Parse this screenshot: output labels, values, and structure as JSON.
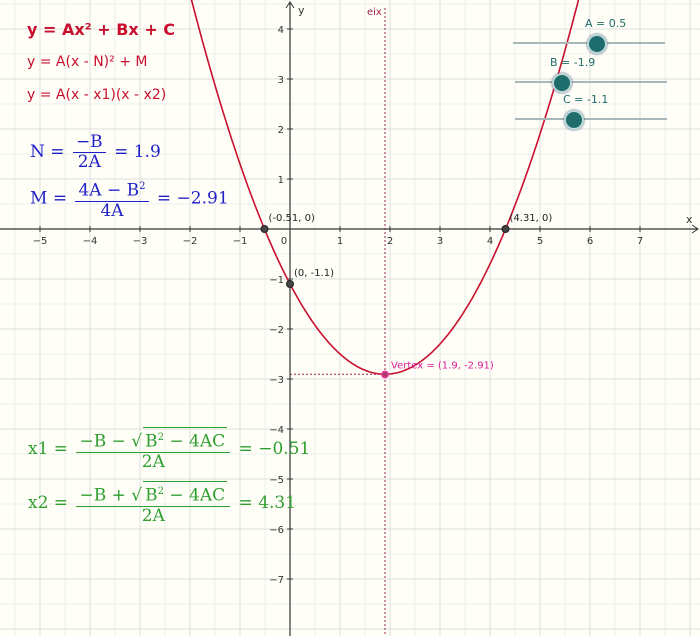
{
  "equations": {
    "general": "y = Ax² + Bx + C",
    "vertex_form": "y = A(x - N)² + M",
    "factored_form": "y = A(x - x1)(x - x2)"
  },
  "formulas": {
    "n": {
      "lhs": "N",
      "num": "−B",
      "den": "2A",
      "result": "= 1.9"
    },
    "m": {
      "lhs": "M",
      "num": "4A − B",
      "num_sup": "2",
      "den": "4A",
      "result": "= −2.91"
    },
    "x1": {
      "lhs": "x1",
      "num_pre": "−B −",
      "rad_body": "B",
      "rad_sup": "2",
      "rad_rest": " − 4AC",
      "den": "2A",
      "result": "= −0.51"
    },
    "x2": {
      "lhs": "x2",
      "num_pre": "−B +",
      "rad_body": "B",
      "rad_sup": "2",
      "rad_rest": " − 4AC",
      "den": "2A",
      "result": "= 4.31"
    }
  },
  "sliders": [
    {
      "name": "A",
      "label": "A = 0.5",
      "value": 0.5,
      "min": -5,
      "max": 5
    },
    {
      "name": "B",
      "label": "B = -1.9",
      "value": -1.9,
      "min": -5,
      "max": 5
    },
    {
      "name": "C",
      "label": "C = -1.1",
      "value": -1.1,
      "min": -5,
      "max": 5
    }
  ],
  "axes": {
    "x_label": "x",
    "y_label": "y",
    "axis_line_label": "eix",
    "x_ticks": [
      "−5",
      "−4",
      "−3",
      "−2",
      "−1",
      "0",
      "1",
      "2",
      "3",
      "4",
      "5",
      "6",
      "7"
    ],
    "y_ticks": [
      "4",
      "3",
      "2",
      "1",
      "−1",
      "−2",
      "−3",
      "−4",
      "−5",
      "−6",
      "−7"
    ],
    "x_tick_values": [
      -5,
      -4,
      -3,
      -2,
      -1,
      0,
      1,
      2,
      3,
      4,
      5,
      6,
      7
    ],
    "y_tick_values": [
      4,
      3,
      2,
      1,
      -1,
      -2,
      -3,
      -4,
      -5,
      -6,
      -7
    ]
  },
  "points": [
    {
      "label": "(-0.51, 0)",
      "x": -0.51,
      "y": 0
    },
    {
      "label": "(4.31, 0)",
      "x": 4.31,
      "y": 0
    },
    {
      "label": "(0, -1.1)",
      "x": 0,
      "y": -1.1
    },
    {
      "label": "Vertex = (1.9, -2.91)",
      "x": 1.9,
      "y": -2.91
    }
  ],
  "colors": {
    "curve": "#c8102e",
    "vertex": "#d81b9a",
    "axis_of_symmetry": "#9e1f4a",
    "grid": "#e4e4e4",
    "slider": "#1f6c6c"
  }
}
